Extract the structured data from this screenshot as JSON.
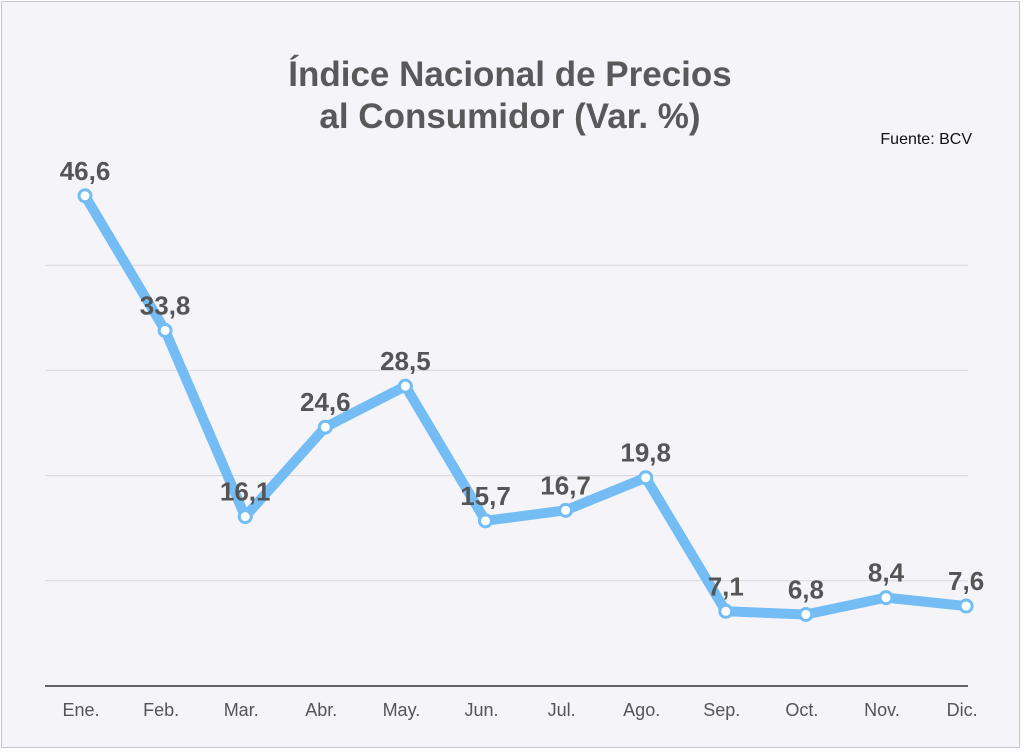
{
  "chart_data": {
    "type": "line",
    "title_line1": "Índice Nacional de Precios",
    "title_line2": "al Consumidor (Var. %)",
    "source": "Fuente: BCV",
    "categories": [
      "Ene.",
      "Feb.",
      "Mar.",
      "Abr.",
      "May.",
      "Jun.",
      "Jul.",
      "Ago.",
      "Sep.",
      "Oct.",
      "Nov.",
      "Dic."
    ],
    "values": [
      46.6,
      33.8,
      16.1,
      24.6,
      28.5,
      15.7,
      16.7,
      19.8,
      7.1,
      6.8,
      8.4,
      7.6
    ],
    "value_labels": [
      "46,6",
      "33,8",
      "16,1",
      "24,6",
      "28,5",
      "15,7",
      "16,7",
      "19,8",
      "7,1",
      "6,8",
      "8,4",
      "7,6"
    ],
    "ylim": [
      0,
      50
    ],
    "grid": true,
    "legend": "none",
    "line_color": "#74bdf4",
    "marker_fill": "#ffffff"
  }
}
